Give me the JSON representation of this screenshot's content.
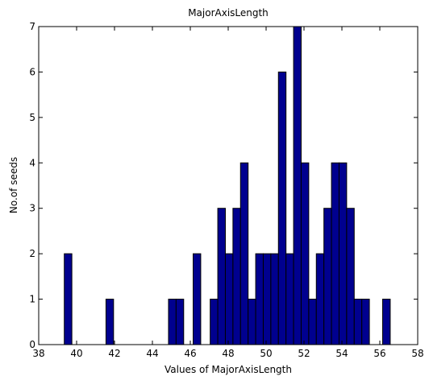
{
  "chart_data": {
    "type": "bar",
    "title": "MajorAxisLength",
    "xlabel": "Values of MajorAxisLength",
    "ylabel": "No.of seeds",
    "xlim": [
      38,
      58
    ],
    "ylim": [
      0,
      7
    ],
    "xticks": [
      "38",
      "40",
      "42",
      "44",
      "46",
      "48",
      "50",
      "52",
      "54",
      "56",
      "58"
    ],
    "yticks": [
      "0",
      "1",
      "2",
      "3",
      "4",
      "5",
      "6",
      "7"
    ],
    "bin_width": 0.4,
    "bins": [
      {
        "x": 39.55,
        "count": 2
      },
      {
        "x": 41.75,
        "count": 1
      },
      {
        "x": 45.05,
        "count": 1
      },
      {
        "x": 45.45,
        "count": 1
      },
      {
        "x": 46.35,
        "count": 2
      },
      {
        "x": 47.25,
        "count": 1
      },
      {
        "x": 47.65,
        "count": 3
      },
      {
        "x": 48.05,
        "count": 2
      },
      {
        "x": 48.45,
        "count": 3
      },
      {
        "x": 48.85,
        "count": 4
      },
      {
        "x": 49.25,
        "count": 1
      },
      {
        "x": 49.65,
        "count": 2
      },
      {
        "x": 50.05,
        "count": 2
      },
      {
        "x": 50.45,
        "count": 2
      },
      {
        "x": 50.85,
        "count": 6
      },
      {
        "x": 51.25,
        "count": 2
      },
      {
        "x": 51.65,
        "count": 7
      },
      {
        "x": 52.05,
        "count": 4
      },
      {
        "x": 52.45,
        "count": 1
      },
      {
        "x": 52.85,
        "count": 2
      },
      {
        "x": 53.25,
        "count": 3
      },
      {
        "x": 53.65,
        "count": 4
      },
      {
        "x": 54.05,
        "count": 4
      },
      {
        "x": 54.45,
        "count": 3
      },
      {
        "x": 54.85,
        "count": 1
      },
      {
        "x": 55.25,
        "count": 1
      },
      {
        "x": 56.35,
        "count": 1
      }
    ],
    "bar_color": "#00008F",
    "edge_color": "#000000",
    "grid": false
  }
}
